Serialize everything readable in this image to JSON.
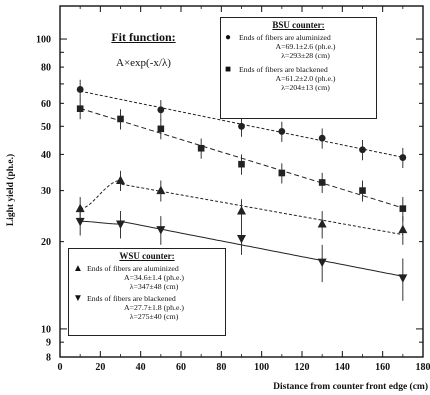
{
  "chart_data": {
    "type": "scatter",
    "xlabel": "Distance from counter front edge (cm)",
    "ylabel": "Light yield (ph.e.)",
    "xlim": [
      0,
      180
    ],
    "ylim": [
      8,
      130
    ],
    "yscale": "log",
    "grid": false,
    "x_ticks": [
      "0",
      "20",
      "40",
      "60",
      "80",
      "100",
      "120",
      "140",
      "160",
      "180"
    ],
    "y_ticks": [
      "8",
      "9",
      "10",
      "20",
      "30",
      "40",
      "50",
      "60",
      "80",
      "100"
    ],
    "series": [
      {
        "marker": "circle",
        "points": [
          [
            10,
            67.0
          ],
          [
            50,
            57.0
          ],
          [
            90,
            50.0
          ],
          [
            110,
            48.0
          ],
          [
            130,
            45.5
          ],
          [
            150,
            41.5
          ],
          [
            170,
            39.0
          ]
        ]
      },
      {
        "marker": "square",
        "points": [
          [
            10,
            57.5
          ],
          [
            30,
            53.0
          ],
          [
            50,
            49.0
          ],
          [
            70,
            42.0
          ],
          [
            90,
            37.0
          ],
          [
            110,
            34.5
          ],
          [
            130,
            32.0
          ],
          [
            150,
            30.0
          ],
          [
            170,
            26.0
          ]
        ]
      },
      {
        "marker": "triangle-up",
        "points": [
          [
            10,
            26.0
          ],
          [
            30,
            32.5
          ],
          [
            50,
            30.0
          ],
          [
            90,
            25.5
          ],
          [
            130,
            23.0
          ],
          [
            170,
            22.0
          ]
        ]
      },
      {
        "marker": "triangle-down",
        "points": [
          [
            10,
            23.5
          ],
          [
            30,
            23.0
          ],
          [
            50,
            22.0
          ],
          [
            90,
            20.5
          ],
          [
            130,
            17.0
          ],
          [
            170,
            15.0
          ]
        ]
      }
    ],
    "fit_function": {
      "title": "Fit function:",
      "formula": "A×exp(-x/λ)"
    },
    "bsu": {
      "title": "BSU counter:",
      "alu_label": "Ends of fibers are aluminized",
      "alu_A": "A=69.1±2.6 (ph.e.)",
      "alu_lambda": "λ=293±28 (cm)",
      "black_label": "Ends of fibers are blackened",
      "black_A": "A=61.2±2.0 (ph.e.)",
      "black_lambda": "λ=204±13 (cm)"
    },
    "wsu": {
      "title": "WSU counter:",
      "alu_label": "Ends of fibers are aluminized",
      "alu_A": "A=34.6±1.4 (ph.e.)",
      "alu_lambda": "λ=347±48 (cm)",
      "black_label": "Ends of fibers are blackened",
      "black_A": "A=27.7±1.8 (ph.e.)",
      "black_lambda": "λ=275±40 (cm)"
    }
  }
}
